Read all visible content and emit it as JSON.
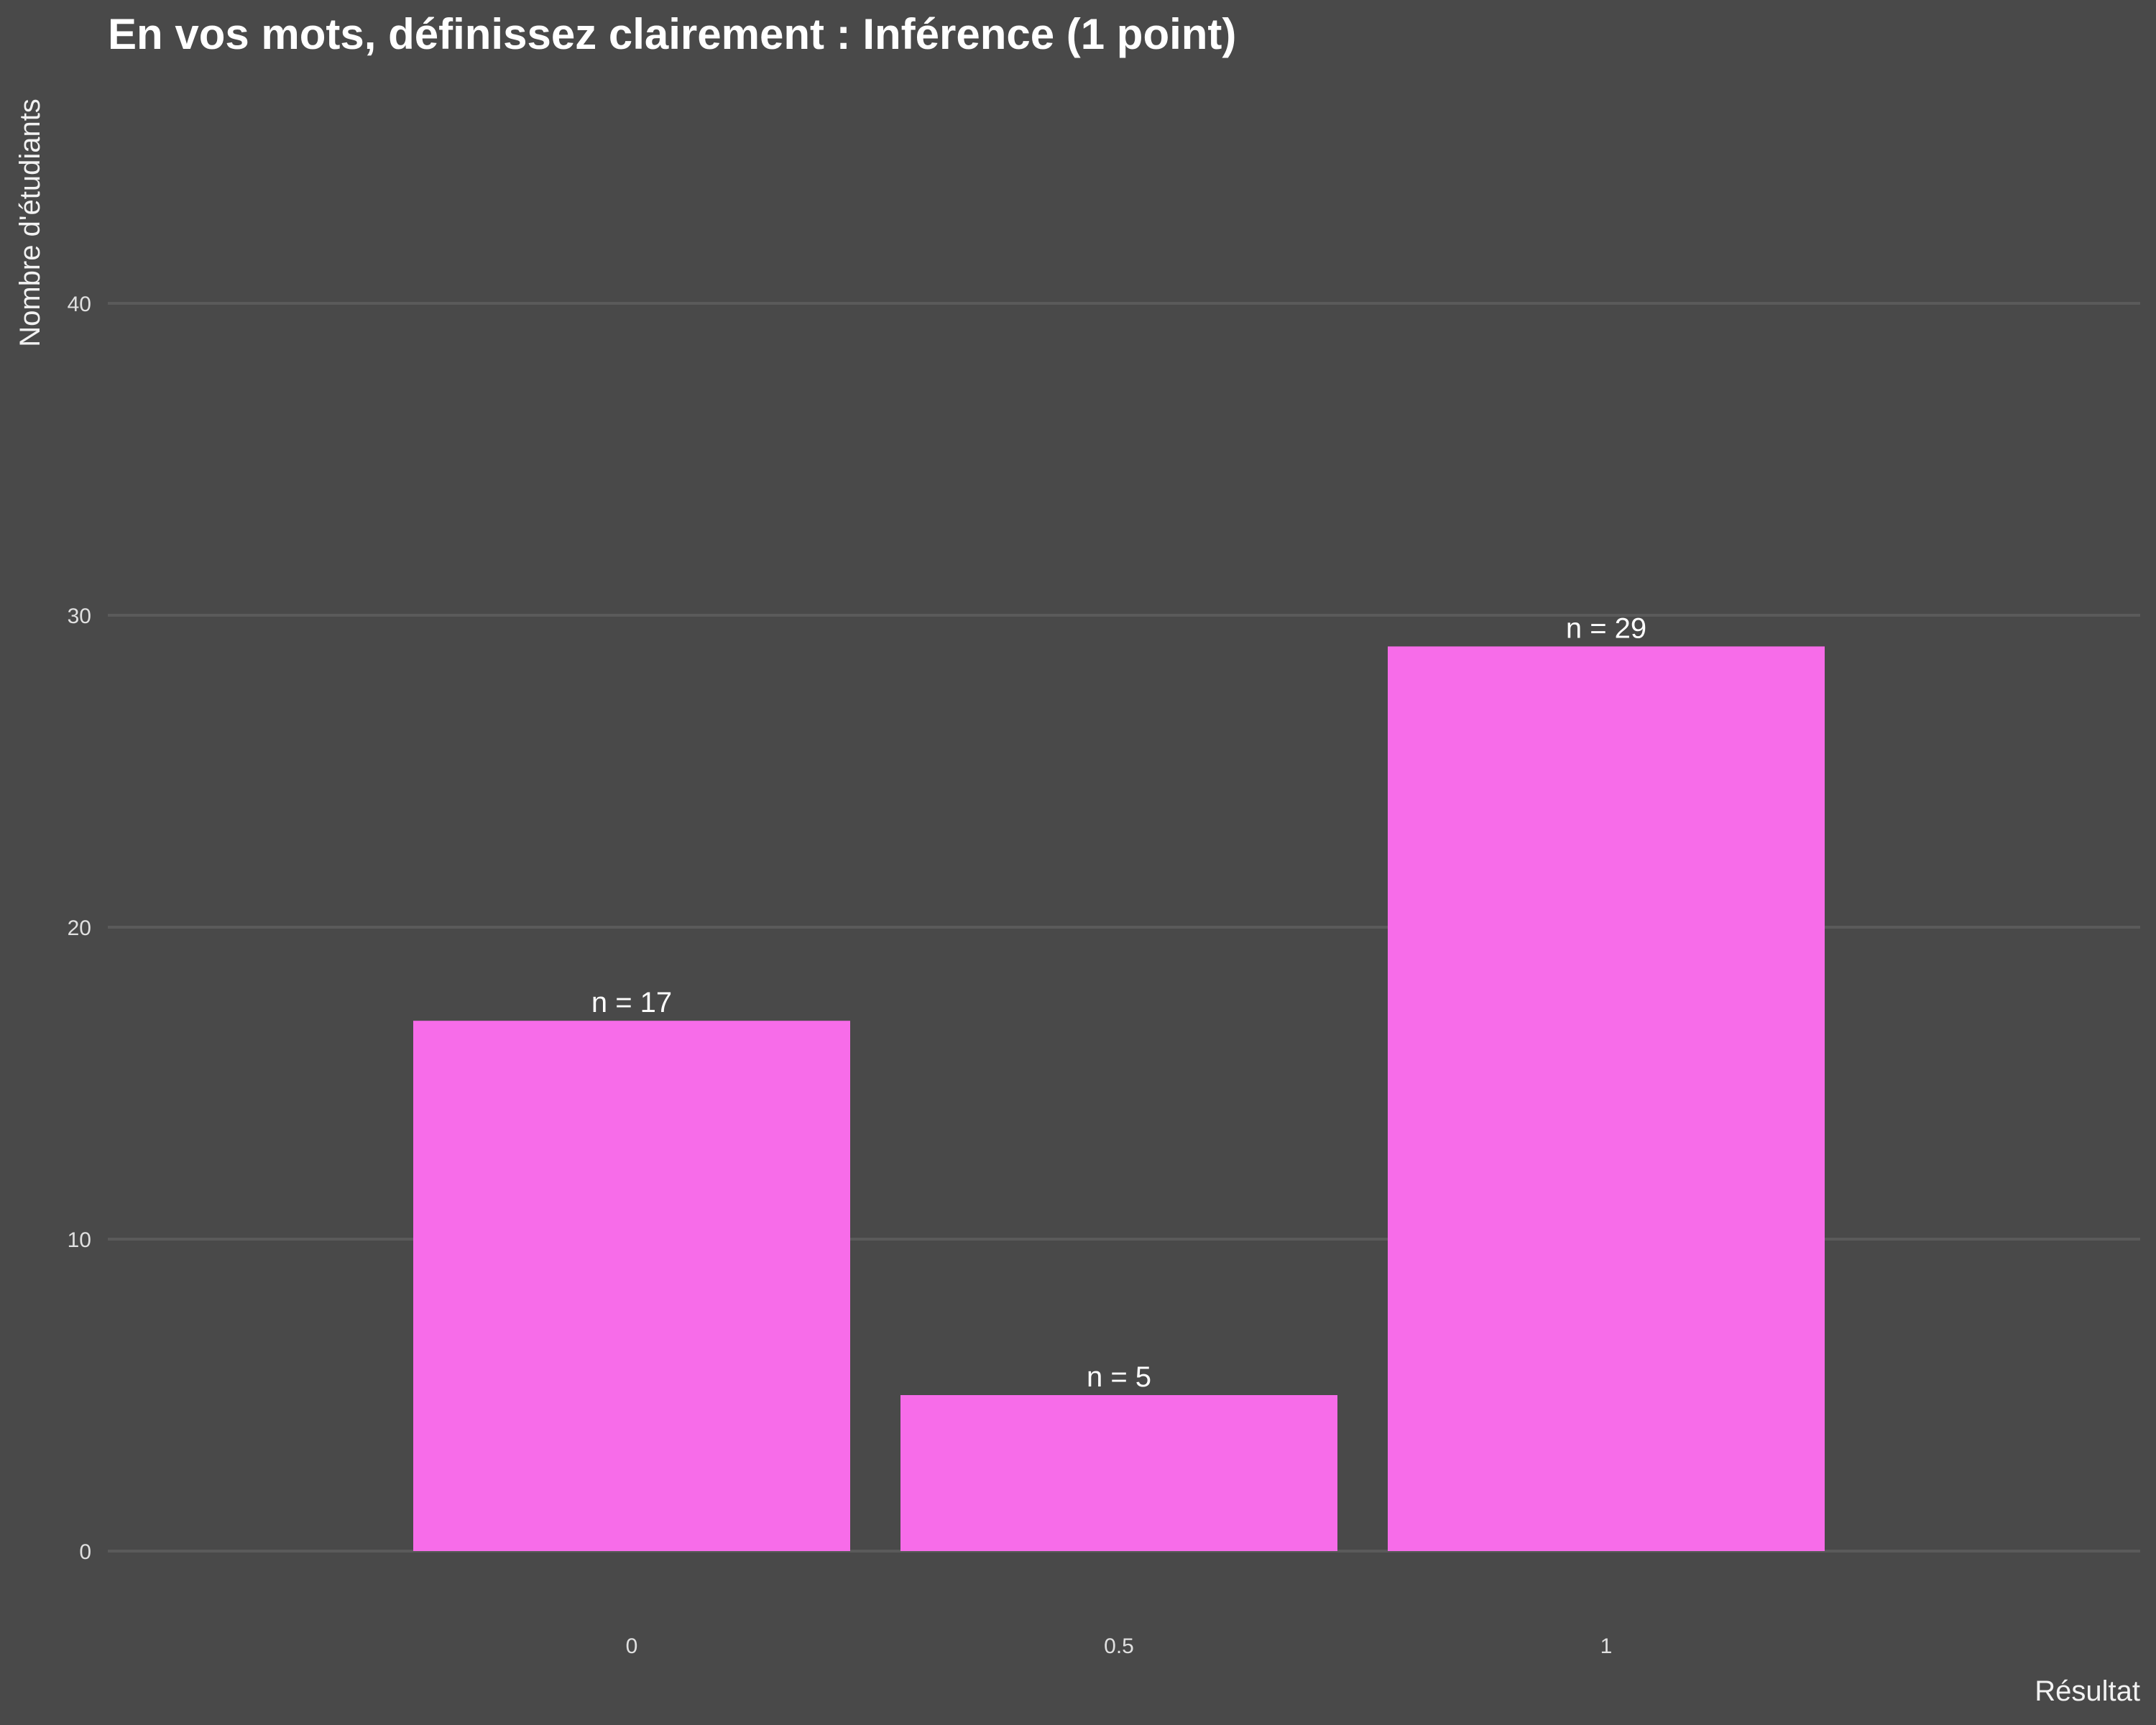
{
  "chart_data": {
    "type": "bar",
    "title": "En vos mots, définissez clairement : Inférence (1 point)",
    "xlabel": "Résultat",
    "ylabel": "Nombre d'étudiants",
    "categories": [
      "0",
      "0.5",
      "1"
    ],
    "values": [
      17,
      5,
      29
    ],
    "data_labels": [
      "n = 17",
      "n = 5",
      "n = 29"
    ],
    "yticks": [
      "0",
      "10",
      "20",
      "30",
      "40"
    ],
    "ytick_values": [
      0,
      10,
      20,
      30,
      40
    ],
    "ylim": [
      0,
      45
    ],
    "grid": true,
    "legend": "none"
  },
  "colors": {
    "background": "#494949",
    "bar": "#f76ce9",
    "grid": "#5a5a5a",
    "text": "#ffffff"
  }
}
